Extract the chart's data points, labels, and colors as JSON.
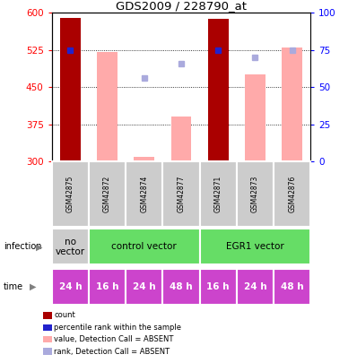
{
  "title": "GDS2009 / 228790_at",
  "samples": [
    "GSM42875",
    "GSM42872",
    "GSM42874",
    "GSM42877",
    "GSM42871",
    "GSM42873",
    "GSM42876"
  ],
  "count_values": [
    590,
    null,
    null,
    null,
    588,
    null,
    null
  ],
  "pink_bar_values": [
    null,
    520,
    310,
    390,
    null,
    475,
    530
  ],
  "blue_dot_values": [
    525,
    null,
    468,
    498,
    525,
    510,
    525
  ],
  "blue_dot_is_dark": [
    true,
    false,
    false,
    false,
    true,
    false,
    false
  ],
  "ylim": [
    300,
    600
  ],
  "yticks_left": [
    300,
    375,
    450,
    525,
    600
  ],
  "yticks_right": [
    0,
    25,
    50,
    75,
    100
  ],
  "time_labels": [
    "24 h",
    "16 h",
    "24 h",
    "48 h",
    "16 h",
    "24 h",
    "48 h"
  ],
  "time_color": "#cc44cc",
  "dark_red": "#aa0000",
  "pink": "#ffaaaa",
  "dark_blue": "#2222cc",
  "light_blue": "#aaaadd",
  "gray_sample": "#cccccc",
  "green": "#66dd66",
  "legend_items": [
    {
      "color": "#aa0000",
      "label": "count"
    },
    {
      "color": "#2222cc",
      "label": "percentile rank within the sample"
    },
    {
      "color": "#ffaaaa",
      "label": "value, Detection Call = ABSENT"
    },
    {
      "color": "#aaaadd",
      "label": "rank, Detection Call = ABSENT"
    }
  ]
}
